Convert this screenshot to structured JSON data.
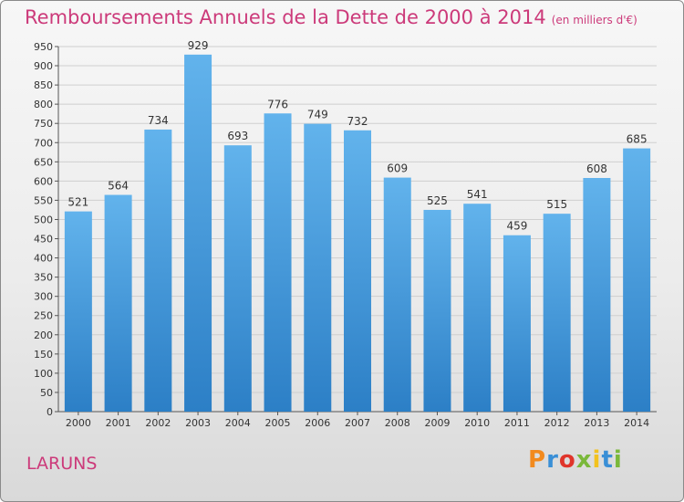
{
  "title": "Remboursements Annuels de la Dette de 2000 à 2014",
  "unit": "(en milliers d'€)",
  "commune": "LARUNS",
  "brand": "Proxiti",
  "colors": {
    "title": "#cc3a7a",
    "bar_top": "#62b3ec",
    "bar_bottom": "#2c7fc6",
    "grid": "#cfcfcf"
  },
  "chart_data": {
    "type": "bar",
    "categories": [
      "2000",
      "2001",
      "2002",
      "2003",
      "2004",
      "2005",
      "2006",
      "2007",
      "2008",
      "2009",
      "2010",
      "2011",
      "2012",
      "2013",
      "2014"
    ],
    "values": [
      521,
      564,
      734,
      929,
      693,
      776,
      749,
      732,
      609,
      525,
      541,
      459,
      515,
      608,
      685
    ],
    "ylim": [
      0,
      950
    ],
    "yticks": [
      0,
      50,
      100,
      150,
      200,
      250,
      300,
      350,
      400,
      450,
      500,
      550,
      600,
      650,
      700,
      750,
      800,
      850,
      900,
      950
    ],
    "grid": true,
    "data_labels": true
  }
}
